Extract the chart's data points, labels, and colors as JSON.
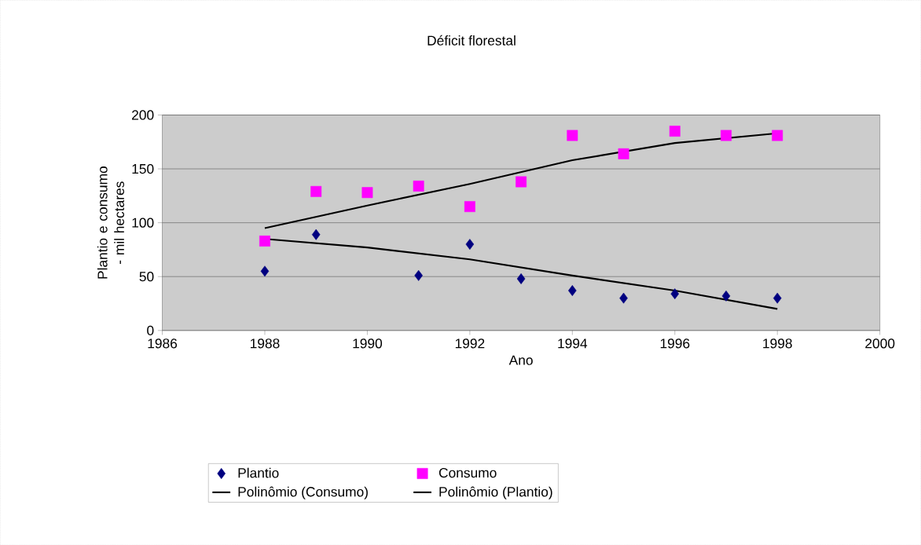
{
  "chart_data": {
    "type": "scatter",
    "title": "Déficit florestal",
    "xlabel": "Ano",
    "ylabel": "Plantio e consumo - mil hectares",
    "xlim": [
      1986,
      2000
    ],
    "xticks": [
      1986,
      1988,
      1990,
      1992,
      1994,
      1996,
      1998,
      2000
    ],
    "ylim": [
      0,
      200
    ],
    "yticks": [
      0,
      50,
      100,
      150,
      200
    ],
    "grid": "y",
    "legend": "bottom",
    "series": [
      {
        "name": "Plantio",
        "type": "scatter",
        "marker": "diamond",
        "color": "#000080",
        "x": [
          1988,
          1989,
          1991,
          1992,
          1993,
          1994,
          1995,
          1996,
          1997,
          1998
        ],
        "values": [
          55,
          89,
          51,
          80,
          48,
          37,
          30,
          34,
          32,
          30
        ]
      },
      {
        "name": "Consumo",
        "type": "scatter",
        "marker": "square",
        "color": "#ff00ff",
        "x": [
          1988,
          1989,
          1990,
          1991,
          1992,
          1993,
          1994,
          1995,
          1996,
          1997,
          1998
        ],
        "values": [
          83,
          129,
          128,
          134,
          115,
          138,
          181,
          164,
          185,
          181,
          181
        ]
      },
      {
        "name": "Polinômio (Consumo)",
        "type": "line",
        "line_style": "solid",
        "marker": "none",
        "color": "#000000",
        "x": [
          1988,
          1990,
          1992,
          1994,
          1996,
          1998
        ],
        "values": [
          95,
          116,
          136,
          158,
          174,
          183
        ]
      },
      {
        "name": "Polinômio (Plantio)",
        "type": "line",
        "line_style": "solid",
        "marker": "none",
        "color": "#000000",
        "x": [
          1988,
          1990,
          1992,
          1994,
          1996,
          1998
        ],
        "values": [
          85,
          77,
          66,
          51,
          37,
          20
        ]
      }
    ]
  }
}
